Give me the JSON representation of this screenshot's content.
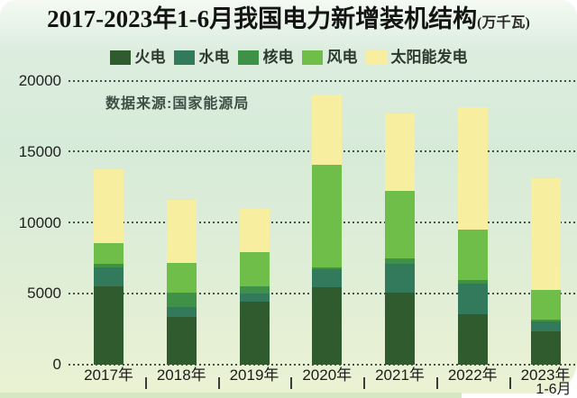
{
  "title": "2017-2023年1-6月我国电力新增装机结构",
  "title_unit": "(万千瓦)",
  "source_note": "数据来源:国家能源局",
  "colors": {
    "panel_top": "#f4faf3",
    "panel_mid": "#d7ebd9",
    "panel_bottom": "#ebf2d3",
    "gridline": "#45504a",
    "axis_text": "#212121",
    "title_text": "#141414",
    "thermal": "#305B2E",
    "hydro": "#337A5C",
    "nuclear": "#3E9146",
    "wind": "#6FBE49",
    "solar": "#F8EE9F"
  },
  "chart_data": {
    "type": "bar",
    "stacked": true,
    "unit": "万千瓦",
    "title": "2017-2023年1-6月我国电力新增装机结构(万千瓦)",
    "source": "数据来源:国家能源局",
    "categories": [
      "2017年",
      "2018年",
      "2019年",
      "2020年",
      "2021年",
      "2022年",
      "2023年"
    ],
    "category_sublabels": [
      "",
      "",
      "",
      "",
      "",
      "",
      "1-6月"
    ],
    "series": [
      {
        "name": "火电",
        "color": "#305B2E",
        "values": [
          5550,
          3370,
          4440,
          5460,
          5080,
          3560,
          2350
        ]
      },
      {
        "name": "水电",
        "color": "#337A5C",
        "values": [
          1330,
          700,
          570,
          1290,
          2030,
          2160,
          700
        ]
      },
      {
        "name": "核电",
        "color": "#3E9146",
        "values": [
          220,
          1010,
          510,
          110,
          380,
          250,
          100
        ]
      },
      {
        "name": "风电",
        "color": "#6FBE49",
        "values": [
          1450,
          2100,
          2410,
          7240,
          4760,
          3550,
          2120
        ]
      },
      {
        "name": "太阳能发电",
        "color": "#F8EE9F",
        "values": [
          5250,
          4440,
          3050,
          4950,
          5460,
          8640,
          7870
        ]
      }
    ],
    "totals": [
      13800,
      11620,
      10980,
      19050,
      17710,
      18160,
      13140
    ],
    "yticks": [
      0,
      5000,
      10000,
      15000,
      20000
    ],
    "ylim": [
      0,
      20000
    ],
    "grid": "dotted horizontal",
    "legend_position": "top"
  }
}
